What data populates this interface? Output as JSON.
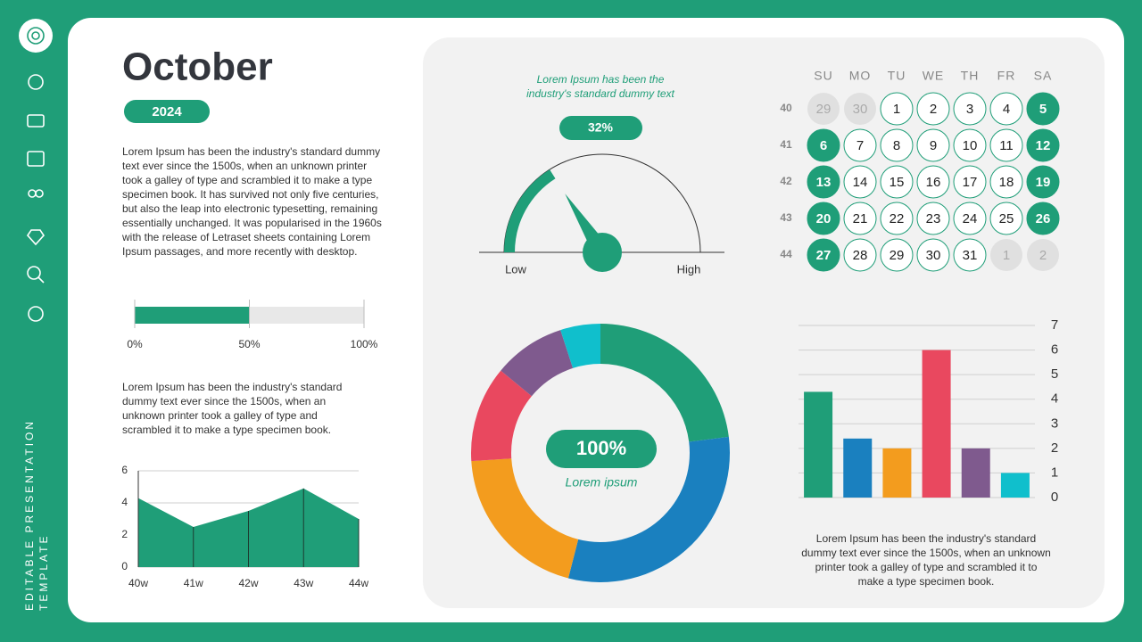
{
  "sidebar": {
    "label_lines": [
      "EDITABLE PRESENTATION",
      "TEMPLATE"
    ]
  },
  "header": {
    "title": "October",
    "year": "2024"
  },
  "paragraphs": [
    "Lorem Ipsum has been the industry's standard dummy text ever since the 1500s, when an unknown printer took a galley of type and scrambled it to make a type specimen book. It has survived not only five centuries, but also the leap into electronic typesetting, remaining essentially unchanged. It was popularised in the 1960s with the release of Letraset sheets containing Lorem Ipsum passages, and more recently with desktop.",
    "Lorem Ipsum has been the industry's standard dummy text ever since the 1500s, when an unknown printer took a galley of type and scrambled it to make a type specimen book.",
    "Lorem Ipsum has been the industry's standard dummy text ever since the 1500s, when an unknown printer took a galley of type and scrambled it to make a type specimen book."
  ],
  "calendar": {
    "weekdays": [
      "SU",
      "MO",
      "TU",
      "WE",
      "TH",
      "FR",
      "SA"
    ],
    "weeks": [
      {
        "number": 40,
        "days": [
          29,
          30,
          1,
          2,
          3,
          4,
          5
        ]
      },
      {
        "number": 41,
        "days": [
          6,
          7,
          8,
          9,
          10,
          11,
          12
        ]
      },
      {
        "number": 42,
        "days": [
          13,
          14,
          15,
          16,
          17,
          18,
          19
        ]
      },
      {
        "number": 43,
        "days": [
          20,
          21,
          22,
          23,
          24,
          25,
          26
        ]
      },
      {
        "number": 44,
        "days": [
          27,
          28,
          29,
          30,
          31,
          1,
          2
        ]
      }
    ]
  },
  "chart_data": [
    {
      "type": "progress",
      "value": 50,
      "color": "#1f9e78",
      "xlim": [
        0,
        100
      ],
      "xticks": [
        {
          "value": 0,
          "label": "0%"
        },
        {
          "value": 50,
          "label": "50%"
        },
        {
          "value": 100,
          "label": "100%"
        }
      ]
    },
    {
      "type": "area",
      "categories": [
        "40w",
        "41w",
        "42w",
        "43w",
        "44w"
      ],
      "values": [
        4.3,
        2.5,
        3.5,
        4.9,
        3.0
      ],
      "color": "#1f9e78",
      "ylim": [
        0,
        6
      ],
      "yticks": [
        0,
        2,
        4,
        6
      ],
      "grid": true
    },
    {
      "type": "gauge",
      "title": "Lorem Ipsum has been the industry's standard dummy text",
      "value": 32,
      "value_label": "32%",
      "min_label": "Low",
      "max_label": "High",
      "xlim": [
        0,
        100
      ],
      "color": "#1f9e78"
    },
    {
      "type": "donut",
      "center_label": "100%",
      "center_sublabel": "Lorem ipsum",
      "values": [
        23,
        31,
        20,
        12,
        9,
        5
      ],
      "colors": [
        "#1f9e78",
        "#1a80bf",
        "#f39c1e",
        "#e9485f",
        "#7f5a8e",
        "#10bfcc"
      ]
    },
    {
      "type": "bar",
      "values": [
        4.3,
        2.4,
        2.0,
        6.0,
        2.0,
        1.0
      ],
      "colors": [
        "#1f9e78",
        "#1a80bf",
        "#f39c1e",
        "#e9485f",
        "#7f5a8e",
        "#10bfcc"
      ],
      "ylim": [
        0,
        7
      ],
      "yticks": [
        0,
        1,
        2,
        3,
        4,
        5,
        6,
        7
      ],
      "grid": true
    }
  ]
}
